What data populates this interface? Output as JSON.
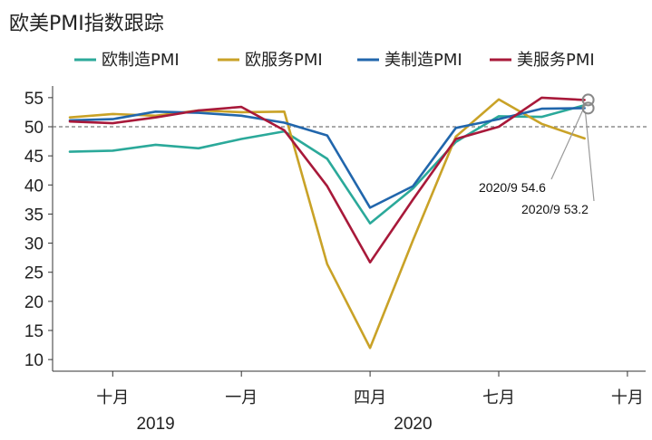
{
  "chart_data": {
    "type": "line",
    "title": "欧美PMI指数跟踪",
    "x": [
      "2019-09",
      "2019-10",
      "2019-11",
      "2019-12",
      "2020-01",
      "2020-02",
      "2020-03",
      "2020-04",
      "2020-05",
      "2020-06",
      "2020-07",
      "2020-08",
      "2020-09"
    ],
    "x_tick_labels": [
      {
        "label": "十月",
        "at": "2019-10"
      },
      {
        "label": "一月",
        "at": "2020-01"
      },
      {
        "label": "四月",
        "at": "2020-04"
      },
      {
        "label": "七月",
        "at": "2020-07"
      },
      {
        "label": "十月",
        "at": "2020-10"
      }
    ],
    "year_labels": [
      {
        "label": "2019",
        "at": "2019-11"
      },
      {
        "label": "2020",
        "at": "2020-05"
      }
    ],
    "ylim": [
      10,
      55
    ],
    "ylim_display": [
      8,
      57
    ],
    "yticks": [
      10,
      15,
      20,
      25,
      30,
      35,
      40,
      45,
      50,
      55
    ],
    "reference_line": 50,
    "grid": false,
    "legend_position": "top",
    "series": [
      {
        "name": "欧制造PMI",
        "color": "#2ba99a",
        "values": [
          45.7,
          45.9,
          46.9,
          46.3,
          47.9,
          49.2,
          44.5,
          33.4,
          39.4,
          47.4,
          51.8,
          51.7,
          53.7
        ]
      },
      {
        "name": "欧服务PMI",
        "color": "#c9a227",
        "values": [
          51.6,
          52.2,
          51.9,
          52.8,
          52.5,
          52.6,
          26.4,
          12.0,
          30.5,
          48.3,
          54.7,
          50.5,
          48.0
        ]
      },
      {
        "name": "美制造PMI",
        "color": "#2166ac",
        "values": [
          51.1,
          51.3,
          52.6,
          52.4,
          51.9,
          50.7,
          48.5,
          36.1,
          39.8,
          49.8,
          51.3,
          53.1,
          53.2
        ]
      },
      {
        "name": "美服务PMI",
        "color": "#a8193a",
        "values": [
          50.9,
          50.6,
          51.6,
          52.8,
          53.4,
          49.4,
          39.8,
          26.7,
          37.5,
          47.9,
          50.0,
          55.0,
          54.6
        ]
      }
    ],
    "annotations": [
      {
        "text": "2020/9 54.6",
        "x": "2020-09",
        "y": 54.6
      },
      {
        "text": "2020/9 53.2",
        "x": "2020-09",
        "y": 53.2
      }
    ]
  }
}
